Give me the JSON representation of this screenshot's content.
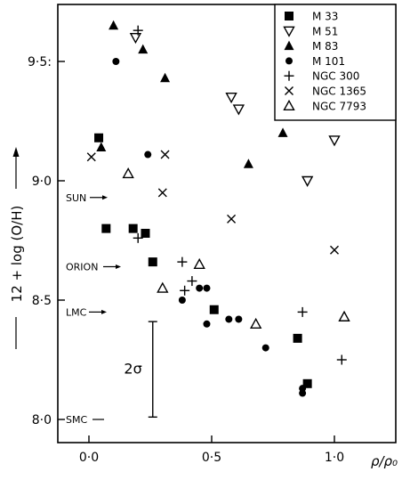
{
  "chart_data": {
    "type": "scatter",
    "title": "",
    "ylabel": "12 + log (O/H)",
    "xlabel": "ρ/ρ₀",
    "xlim": [
      -0.13,
      1.22
    ],
    "ylim": [
      7.94,
      9.74
    ],
    "x_ticks": [
      {
        "value": 0.0,
        "label": "0·0"
      },
      {
        "value": 0.5,
        "label": "0·5"
      },
      {
        "value": 1.0,
        "label": "1·0"
      }
    ],
    "y_ticks": [
      {
        "value": 8.0,
        "label": "8·0"
      },
      {
        "value": 8.5,
        "label": "8·5"
      },
      {
        "value": 9.0,
        "label": "9·0"
      },
      {
        "value": 9.5,
        "label": "9·5:"
      }
    ],
    "reference_levels": [
      {
        "name": "SUN",
        "label": "SUN",
        "value": 8.93
      },
      {
        "name": "ORION",
        "label": "ORION",
        "value": 8.64
      },
      {
        "name": "LMC",
        "label": "LMC",
        "value": 8.45
      },
      {
        "name": "SMC",
        "label": "SMC",
        "value": 8.0
      }
    ],
    "error_bar": {
      "label": "2σ",
      "x": 0.26,
      "y_low": 8.01,
      "y_high": 8.41
    },
    "legend_position": "top-right",
    "grid": false,
    "series": [
      {
        "name": "M 33",
        "marker": "square-filled",
        "points": [
          [
            0.04,
            9.18
          ],
          [
            0.07,
            8.8
          ],
          [
            0.18,
            8.8
          ],
          [
            0.23,
            8.78
          ],
          [
            0.26,
            8.66
          ],
          [
            0.51,
            8.46
          ],
          [
            0.85,
            8.34
          ],
          [
            0.89,
            8.15
          ]
        ]
      },
      {
        "name": "M 51",
        "marker": "triangle-down-open",
        "points": [
          [
            0.19,
            9.6
          ],
          [
            0.58,
            9.35
          ],
          [
            0.61,
            9.3
          ],
          [
            0.89,
            9.0
          ],
          [
            1.0,
            9.17
          ]
        ]
      },
      {
        "name": "M 83",
        "marker": "triangle-up-filled",
        "points": [
          [
            0.1,
            9.65
          ],
          [
            0.22,
            9.55
          ],
          [
            0.31,
            9.43
          ],
          [
            0.05,
            9.14
          ],
          [
            0.65,
            9.07
          ],
          [
            0.79,
            9.2
          ]
        ]
      },
      {
        "name": "M 101",
        "marker": "circle-filled",
        "points": [
          [
            0.11,
            9.5
          ],
          [
            0.24,
            9.11
          ],
          [
            0.38,
            8.5
          ],
          [
            0.45,
            8.55
          ],
          [
            0.48,
            8.55
          ],
          [
            0.48,
            8.4
          ],
          [
            0.57,
            8.42
          ],
          [
            0.61,
            8.42
          ],
          [
            0.72,
            8.3
          ],
          [
            0.87,
            8.11
          ],
          [
            0.87,
            8.13
          ]
        ]
      },
      {
        "name": "NGC 300",
        "marker": "plus",
        "points": [
          [
            0.2,
            9.63
          ],
          [
            0.2,
            8.76
          ],
          [
            0.39,
            8.54
          ],
          [
            0.42,
            8.58
          ],
          [
            0.38,
            8.66
          ],
          [
            0.87,
            8.45
          ],
          [
            1.03,
            8.25
          ]
        ]
      },
      {
        "name": "NGC 1365",
        "marker": "cross",
        "points": [
          [
            0.01,
            9.1
          ],
          [
            0.31,
            9.11
          ],
          [
            0.3,
            8.95
          ],
          [
            0.58,
            8.84
          ],
          [
            1.0,
            8.71
          ]
        ]
      },
      {
        "name": "NGC 7793",
        "marker": "triangle-up-open",
        "points": [
          [
            0.16,
            9.03
          ],
          [
            0.3,
            8.55
          ],
          [
            0.45,
            8.65
          ],
          [
            0.68,
            8.4
          ],
          [
            1.04,
            8.43
          ]
        ]
      }
    ]
  }
}
